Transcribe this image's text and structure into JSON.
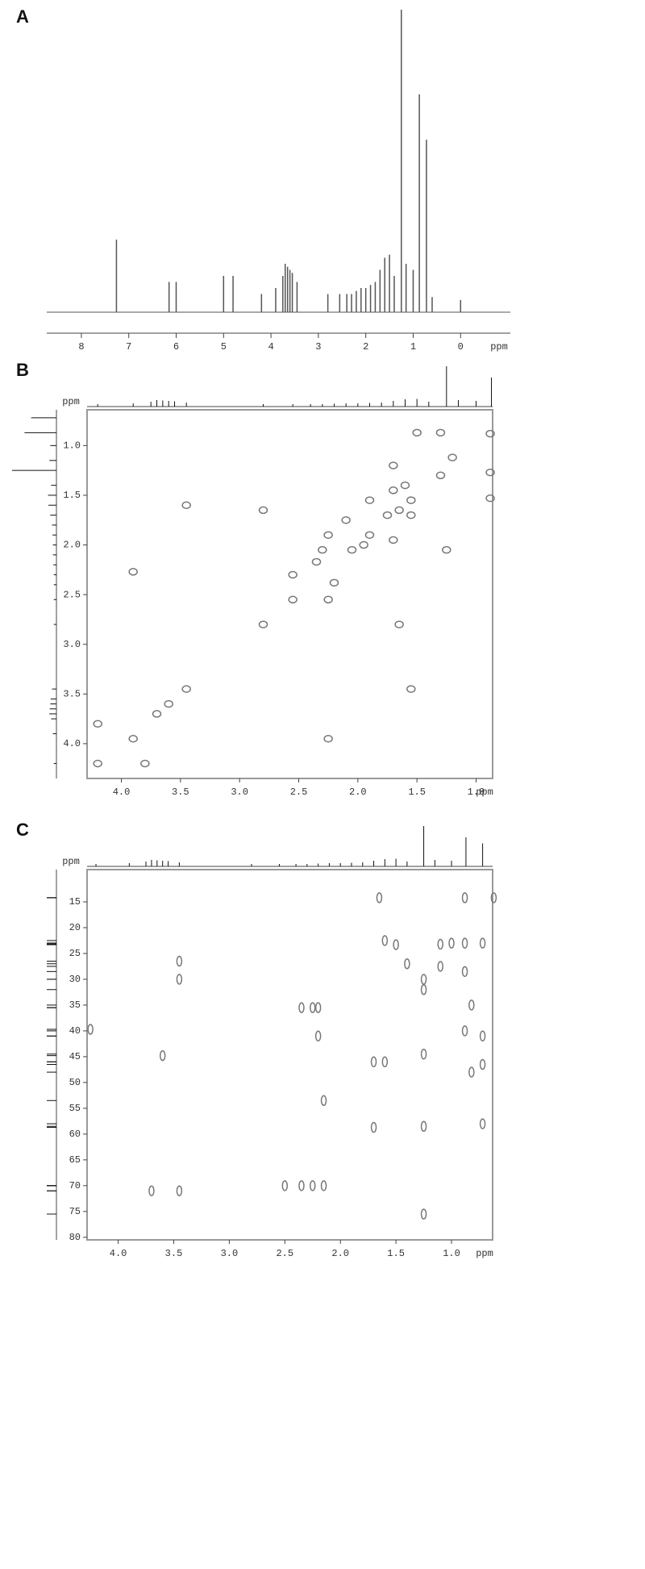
{
  "chart_data": [
    {
      "type": "spectrum",
      "panel": "A",
      "x_unit": "ppm",
      "color": "#555",
      "x": [
        7.26,
        6.15,
        6.0,
        5.0,
        4.8,
        4.2,
        3.9,
        3.75,
        3.7,
        3.65,
        3.6,
        3.55,
        3.45,
        2.8,
        2.55,
        2.4,
        2.3,
        2.2,
        2.1,
        2.0,
        1.9,
        1.8,
        1.7,
        1.6,
        1.5,
        1.4,
        1.25,
        1.15,
        1.0,
        0.87,
        0.72,
        0.6,
        0.0
      ],
      "values": [
        24,
        10,
        10,
        12,
        12,
        6,
        8,
        12,
        16,
        15,
        14,
        13,
        10,
        6,
        6,
        6,
        6,
        7,
        8,
        8,
        9,
        10,
        14,
        18,
        19,
        12,
        100,
        16,
        14,
        72,
        57,
        5,
        4
      ],
      "xlim": [
        8.73,
        -1.05
      ],
      "xticks": [
        8,
        7,
        6,
        5,
        4,
        3,
        2,
        1,
        0
      ]
    },
    {
      "type": "scatter",
      "panel": "B",
      "x_unit": "ppm",
      "y_unit": "ppm",
      "color": "#777",
      "x": [
        0.88,
        1.3,
        1.2,
        1.5,
        1.3,
        0.88,
        0.88,
        1.7,
        1.55,
        1.65,
        1.55,
        3.45,
        2.8,
        1.9,
        1.75,
        2.25,
        2.3,
        2.05,
        1.95,
        1.9,
        1.7,
        1.25,
        2.1,
        1.7,
        3.9,
        3.6,
        3.45,
        3.7,
        2.8,
        1.65,
        1.55,
        2.25,
        3.9,
        4.2,
        4.2,
        3.8,
        2.55,
        2.25,
        2.55,
        2.2,
        2.35,
        1.6
      ],
      "y": [
        0.88,
        1.3,
        1.12,
        0.87,
        0.87,
        1.27,
        1.53,
        1.2,
        1.55,
        1.65,
        1.7,
        1.6,
        1.65,
        1.55,
        1.7,
        1.9,
        2.05,
        2.05,
        2.0,
        1.9,
        1.95,
        2.05,
        1.75,
        1.45,
        2.27,
        3.6,
        3.45,
        3.7,
        2.8,
        2.8,
        3.45,
        3.95,
        3.95,
        3.8,
        4.2,
        4.2,
        2.55,
        2.55,
        2.3,
        2.38,
        2.17,
        1.4
      ],
      "xlim": [
        4.29,
        0.86
      ],
      "ylim": [
        0.64,
        4.35
      ],
      "xticks": [
        {
          "value": 4.0,
          "label": "4.0"
        },
        {
          "value": 3.5,
          "label": "3.5"
        },
        {
          "value": 3.0,
          "label": "3.0"
        },
        {
          "value": 2.5,
          "label": "2.5"
        },
        {
          "value": 2.0,
          "label": "2.0"
        },
        {
          "value": 1.5,
          "label": "1.5"
        },
        {
          "value": 1.0,
          "label": "1.0"
        }
      ],
      "yticks": [
        {
          "value": 1.0,
          "label": "1.0"
        },
        1.5,
        {
          "value": 2.0,
          "label": "2.0"
        },
        2.5,
        {
          "value": 3.0,
          "label": "3.0"
        },
        3.5,
        {
          "value": 4.0,
          "label": "4.0"
        }
      ]
    },
    {
      "type": "scatter",
      "panel": "C",
      "x_unit": "ppm",
      "y_unit": "ppm",
      "color": "#777",
      "x": [
        0.62,
        0.88,
        1.65,
        0.88,
        0.88,
        0.88,
        0.72,
        0.72,
        0.72,
        0.72,
        1.25,
        1.25,
        1.25,
        1.25,
        1.25,
        1.1,
        1.0,
        1.1,
        1.5,
        1.6,
        3.45,
        3.45,
        3.45,
        2.35,
        2.25,
        2.2,
        2.25,
        2.35,
        2.15,
        2.5,
        3.6,
        1.7,
        1.6,
        2.2,
        2.15,
        1.7,
        3.7,
        4.25,
        1.4,
        0.82,
        0.82
      ],
      "y": [
        14.2,
        14.2,
        14.2,
        23,
        28.5,
        40,
        23,
        41,
        46.5,
        58,
        30,
        32,
        44.5,
        58.5,
        75.5,
        23.2,
        23,
        27.5,
        23.3,
        22.5,
        26.5,
        30,
        71,
        35.5,
        35.5,
        35.5,
        70,
        70,
        70,
        70,
        44.8,
        46,
        46,
        41,
        53.5,
        58.7,
        71,
        39.7,
        27,
        35,
        48
      ],
      "xlim": [
        4.28,
        0.63
      ],
      "ylim": [
        8.75,
        80.5
      ],
      "xticks": [
        {
          "value": 4.0,
          "label": "4.0"
        },
        3.5,
        {
          "value": 3.0,
          "label": "3.0"
        },
        2.5,
        {
          "value": 2.0,
          "label": "2.0"
        },
        1.5,
        {
          "value": 1.0,
          "label": "1.0"
        }
      ],
      "yticks": [
        15,
        20,
        25,
        30,
        35,
        40,
        45,
        50,
        55,
        60,
        65,
        70,
        75,
        80
      ]
    }
  ]
}
